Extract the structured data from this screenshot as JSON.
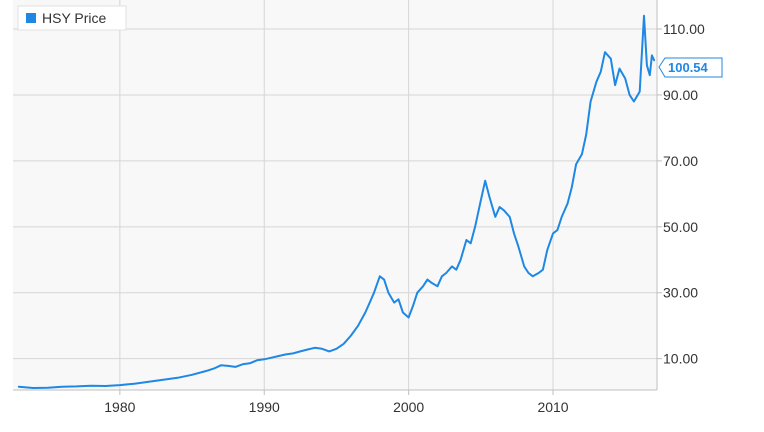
{
  "chart_data": {
    "type": "line",
    "title": "",
    "xlabel": "",
    "ylabel": "",
    "legend": {
      "position": "top-left"
    },
    "grid": true,
    "x_ticks": [
      "1980",
      "1990",
      "2000",
      "2010"
    ],
    "y_ticks": [
      "10.00",
      "30.00",
      "50.00",
      "70.00",
      "90.00",
      "110.00"
    ],
    "xlim": [
      1972.6,
      2017.2
    ],
    "ylim": [
      0.5,
      118.8
    ],
    "last_value_label": "100.54",
    "colors": {
      "series": "#1f88e4",
      "plot_bg": "#f8f8f8",
      "grid": "#d6d6d6",
      "label_box_border": "#1f88e4",
      "label_text": "#1f88e4"
    },
    "series": [
      {
        "name": "HSY Price",
        "x": [
          1973.0,
          1974.0,
          1975.0,
          1976.0,
          1977.0,
          1978.0,
          1979.0,
          1980.0,
          1981.0,
          1982.0,
          1983.0,
          1984.0,
          1985.0,
          1986.0,
          1986.5,
          1987.0,
          1987.5,
          1988.0,
          1988.5,
          1989.0,
          1989.5,
          1990.0,
          1990.5,
          1991.0,
          1991.5,
          1992.0,
          1992.5,
          1993.0,
          1993.5,
          1994.0,
          1994.5,
          1995.0,
          1995.5,
          1996.0,
          1996.5,
          1997.0,
          1997.3,
          1997.6,
          1998.0,
          1998.3,
          1998.6,
          1999.0,
          1999.3,
          1999.6,
          2000.0,
          2000.3,
          2000.6,
          2001.0,
          2001.3,
          2001.6,
          2002.0,
          2002.3,
          2002.6,
          2003.0,
          2003.3,
          2003.6,
          2004.0,
          2004.3,
          2004.6,
          2005.0,
          2005.3,
          2005.6,
          2006.0,
          2006.3,
          2006.6,
          2007.0,
          2007.3,
          2007.6,
          2008.0,
          2008.3,
          2008.6,
          2009.0,
          2009.3,
          2009.6,
          2010.0,
          2010.3,
          2010.6,
          2011.0,
          2011.3,
          2011.6,
          2012.0,
          2012.3,
          2012.6,
          2013.0,
          2013.3,
          2013.6,
          2014.0,
          2014.3,
          2014.6,
          2015.0,
          2015.3,
          2015.6,
          2016.0,
          2016.3,
          2016.5,
          2016.7,
          2016.85,
          2017.0
        ],
        "y": [
          1.5,
          1.1,
          1.2,
          1.5,
          1.6,
          1.8,
          1.7,
          2.0,
          2.4,
          3.0,
          3.6,
          4.2,
          5.1,
          6.3,
          7.0,
          8.0,
          7.8,
          7.5,
          8.3,
          8.6,
          9.5,
          9.8,
          10.3,
          10.8,
          11.3,
          11.6,
          12.2,
          12.8,
          13.3,
          13.0,
          12.2,
          13.0,
          14.5,
          17.0,
          20.0,
          24.0,
          27.0,
          30.0,
          35.0,
          34.0,
          30.0,
          27.0,
          28.0,
          24.0,
          22.5,
          26.0,
          30.0,
          32.0,
          34.0,
          33.0,
          32.0,
          35.0,
          36.0,
          38.0,
          37.0,
          40.0,
          46.0,
          45.0,
          50.0,
          58.0,
          64.0,
          59.0,
          53.0,
          56.0,
          55.0,
          53.0,
          48.0,
          44.0,
          38.0,
          36.0,
          35.0,
          36.0,
          37.0,
          43.0,
          48.0,
          49.0,
          53.0,
          57.0,
          62.0,
          69.0,
          72.0,
          78.0,
          88.0,
          94.0,
          97.0,
          103.0,
          101.0,
          93.0,
          98.0,
          95.0,
          90.0,
          88.0,
          91.0,
          114.0,
          99.0,
          96.0,
          102.0,
          100.54
        ]
      }
    ]
  }
}
